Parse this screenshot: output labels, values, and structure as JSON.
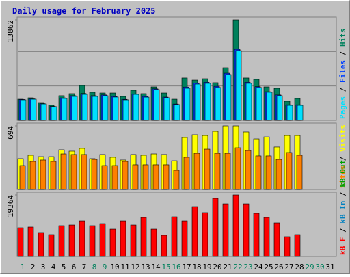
{
  "title": "Daily usage for February 2025",
  "legend_separator": " / ",
  "categories": [
    "1",
    "2",
    "3",
    "4",
    "5",
    "6",
    "7",
    "8",
    "9",
    "10",
    "11",
    "12",
    "13",
    "14",
    "15",
    "16",
    "17",
    "18",
    "19",
    "20",
    "21",
    "22",
    "23",
    "24",
    "25",
    "26",
    "27",
    "28",
    "29",
    "30",
    "31"
  ],
  "category_colors": [
    "#00805c",
    "#000000",
    "#000000",
    "#000000",
    "#000000",
    "#000000",
    "#000000",
    "#00805c",
    "#00805c",
    "#000000",
    "#000000",
    "#000000",
    "#000000",
    "#000000",
    "#00805c",
    "#00805c",
    "#000000",
    "#000000",
    "#000000",
    "#000000",
    "#000000",
    "#00805c",
    "#00805c",
    "#000000",
    "#000000",
    "#000000",
    "#000000",
    "#000000",
    "#00805c",
    "#00805c",
    "#000000"
  ],
  "chart_data": [
    {
      "type": "bar",
      "ylim": [
        0,
        13862
      ],
      "yticks": [
        13862
      ],
      "series": [
        {
          "name": "Hits",
          "color": "#00805c",
          "values": [
            2920,
            3110,
            2450,
            2075,
            3400,
            3680,
            4810,
            3870,
            3770,
            3770,
            3300,
            4150,
            3680,
            4620,
            3770,
            2920,
            5850,
            5560,
            5750,
            5190,
            7260,
            13862,
            5850,
            5660,
            4620,
            4430,
            2640,
            3020,
            null,
            null,
            null
          ]
        },
        {
          "name": "Files",
          "color": "#0040ff",
          "values": [
            2880,
            2960,
            2300,
            1930,
            3100,
            3400,
            3700,
            3400,
            3500,
            3300,
            2900,
            3650,
            3300,
            4350,
            3200,
            2250,
            4600,
            5150,
            5250,
            4700,
            6500,
            9800,
            5250,
            4650,
            3950,
            3500,
            2150,
            2150,
            null,
            null,
            null
          ]
        },
        {
          "name": "Pages",
          "color": "#00e0ff",
          "values": [
            2830,
            2920,
            2260,
            1890,
            3020,
            3300,
            3580,
            3300,
            3400,
            3210,
            2830,
            3580,
            3200,
            4250,
            3110,
            2170,
            4430,
            5000,
            5100,
            4530,
            6320,
            9620,
            5100,
            4530,
            3870,
            3400,
            2070,
            2070,
            null,
            null,
            null
          ]
        }
      ]
    },
    {
      "type": "bar",
      "ylim": [
        0,
        694
      ],
      "yticks": [
        694
      ],
      "series": [
        {
          "name": "Visits",
          "color": "#ffff00",
          "values": [
            336,
            373,
            358,
            358,
            433,
            418,
            448,
            336,
            381,
            351,
            321,
            381,
            373,
            388,
            381,
            313,
            567,
            597,
            589,
            634,
            694,
            694,
            627,
            552,
            574,
            463,
            589,
            589,
            null,
            null,
            null
          ]
        },
        {
          "name": "Sites",
          "color": "#ff8000",
          "values": [
            261,
            306,
            321,
            306,
            388,
            381,
            381,
            328,
            261,
            261,
            306,
            269,
            269,
            269,
            269,
            209,
            351,
            395,
            440,
            395,
            395,
            455,
            425,
            366,
            366,
            328,
            403,
            373,
            null,
            null,
            null
          ]
        }
      ]
    },
    {
      "type": "bar",
      "ylim": [
        0,
        19364
      ],
      "yticks": [
        19364
      ],
      "series": [
        {
          "name": "kB F",
          "color": "#ff0000",
          "values": [
            9030,
            9250,
            7530,
            6880,
            9680,
            9890,
            11180,
            9680,
            10320,
            8600,
            11180,
            9890,
            12260,
            8600,
            6670,
            12470,
            11180,
            15700,
            13770,
            18280,
            16560,
            19364,
            16560,
            13550,
            12260,
            10540,
            6240,
            6880,
            null,
            null,
            null
          ]
        }
      ],
      "extra_legend": [
        {
          "name": "kB In",
          "color": "#0080c0"
        },
        {
          "name": "kB Out",
          "color": "#00a000"
        }
      ]
    }
  ]
}
